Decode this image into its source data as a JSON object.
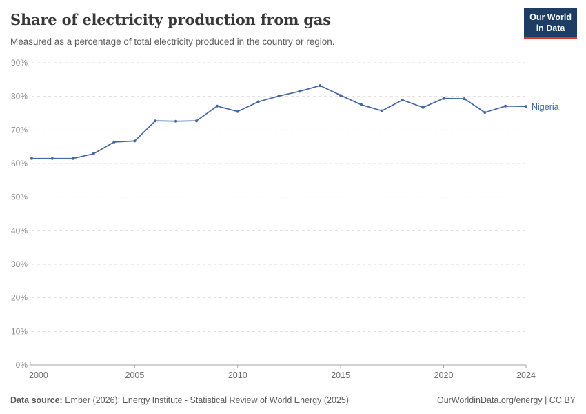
{
  "header": {
    "title": "Share of electricity production from gas",
    "subtitle": "Measured as a percentage of total electricity produced in the country or region.",
    "logo": {
      "line1": "Our World",
      "line2": "in Data",
      "bg_color": "#1d3d63",
      "accent_color": "#d93a2b"
    }
  },
  "chart_data": {
    "type": "line",
    "title": "Share of electricity production from gas",
    "subtitle": "Measured as a percentage of total electricity produced in the country or region.",
    "unit": "%",
    "x": [
      2000,
      2001,
      2002,
      2003,
      2004,
      2005,
      2006,
      2007,
      2008,
      2009,
      2010,
      2011,
      2012,
      2013,
      2014,
      2015,
      2016,
      2017,
      2018,
      2019,
      2020,
      2021,
      2022,
      2023,
      2024
    ],
    "series": [
      {
        "name": "Nigeria",
        "color": "#4466a3",
        "values": [
          61.5,
          61.5,
          61.5,
          62.9,
          66.4,
          66.7,
          72.7,
          72.6,
          72.7,
          77.1,
          75.5,
          78.4,
          80.1,
          81.5,
          83.2,
          80.3,
          77.5,
          75.7,
          78.9,
          76.7,
          79.4,
          79.3,
          75.2,
          77.1,
          77.0
        ]
      }
    ],
    "xlim": [
      2000,
      2024
    ],
    "ylim": [
      0,
      90
    ],
    "yticks": [
      0,
      10,
      20,
      30,
      40,
      50,
      60,
      70,
      80,
      90
    ],
    "ytick_labels": [
      "0%",
      "10%",
      "20%",
      "30%",
      "40%",
      "50%",
      "60%",
      "70%",
      "80%",
      "90%"
    ],
    "xticks": [
      2000,
      2005,
      2010,
      2015,
      2020,
      2024
    ],
    "xtick_labels": [
      "2000",
      "2005",
      "2010",
      "2015",
      "2020",
      "2024"
    ],
    "grid": "horizontal-dashed",
    "legend_position": "line-end-label"
  },
  "footer": {
    "source_label": "Data source:",
    "source_text": "Ember (2026); Energy Institute - Statistical Review of World Energy (2025)",
    "credit": "OurWorldinData.org/energy | CC BY"
  }
}
